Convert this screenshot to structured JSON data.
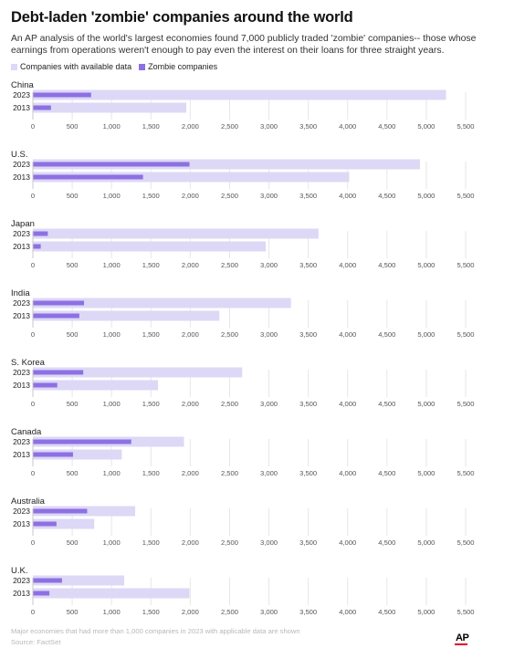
{
  "title": "Debt-laden 'zombie' companies around the world",
  "subtitle": "An AP analysis of the world's largest economies found 7,000 publicly traded 'zombie' companies-- those whose earnings from operations weren't enough to pay even the interest on their loans for three straight years.",
  "legend": {
    "available_label": "Companies with available data",
    "zombie_label": "Zombie companies"
  },
  "colors": {
    "available": "#dcd8f6",
    "zombie": "#8d70e3",
    "gridline": "#e6e6e6",
    "axis": "#c8c8c8",
    "tick_text": "#555555",
    "label_text": "#222222"
  },
  "footnote": "Major economies that had more than 1,000 companies in 2023 with applicable data are shown",
  "source": "Source: FactSet",
  "logo": "AP",
  "chart_data": {
    "type": "bar",
    "orientation": "horizontal",
    "xlim": [
      0,
      5500
    ],
    "ticks": [
      0,
      500,
      1000,
      1500,
      2000,
      2500,
      3000,
      3500,
      4000,
      4500,
      5000,
      5500
    ],
    "tick_labels": [
      "0",
      "500",
      "1,000",
      "1,500",
      "2,000",
      "2,500",
      "3,000",
      "3,500",
      "4,000",
      "4,500",
      "5,000",
      "5,500"
    ],
    "grid": true,
    "legend_placement": "top-left",
    "series_names": [
      "Companies with available data",
      "Zombie companies"
    ],
    "panels": [
      {
        "country": "China",
        "rows": [
          {
            "year": "2023",
            "available": 5250,
            "zombie": 740
          },
          {
            "year": "2013",
            "available": 1950,
            "zombie": 230
          }
        ]
      },
      {
        "country": "U.S.",
        "rows": [
          {
            "year": "2023",
            "available": 4920,
            "zombie": 1990
          },
          {
            "year": "2013",
            "available": 4020,
            "zombie": 1400
          }
        ]
      },
      {
        "country": "Japan",
        "rows": [
          {
            "year": "2023",
            "available": 3630,
            "zombie": 190
          },
          {
            "year": "2013",
            "available": 2960,
            "zombie": 100
          }
        ]
      },
      {
        "country": "India",
        "rows": [
          {
            "year": "2023",
            "available": 3280,
            "zombie": 650
          },
          {
            "year": "2013",
            "available": 2370,
            "zombie": 590
          }
        ]
      },
      {
        "country": "S. Korea",
        "rows": [
          {
            "year": "2023",
            "available": 2660,
            "zombie": 640
          },
          {
            "year": "2013",
            "available": 1590,
            "zombie": 310
          }
        ]
      },
      {
        "country": "Canada",
        "rows": [
          {
            "year": "2023",
            "available": 1920,
            "zombie": 1250
          },
          {
            "year": "2013",
            "available": 1130,
            "zombie": 510
          }
        ]
      },
      {
        "country": "Australia",
        "rows": [
          {
            "year": "2023",
            "available": 1300,
            "zombie": 690
          },
          {
            "year": "2013",
            "available": 780,
            "zombie": 300
          }
        ]
      },
      {
        "country": "U.K.",
        "rows": [
          {
            "year": "2023",
            "available": 1160,
            "zombie": 370
          },
          {
            "year": "2013",
            "available": 1990,
            "zombie": 210
          }
        ]
      }
    ]
  }
}
